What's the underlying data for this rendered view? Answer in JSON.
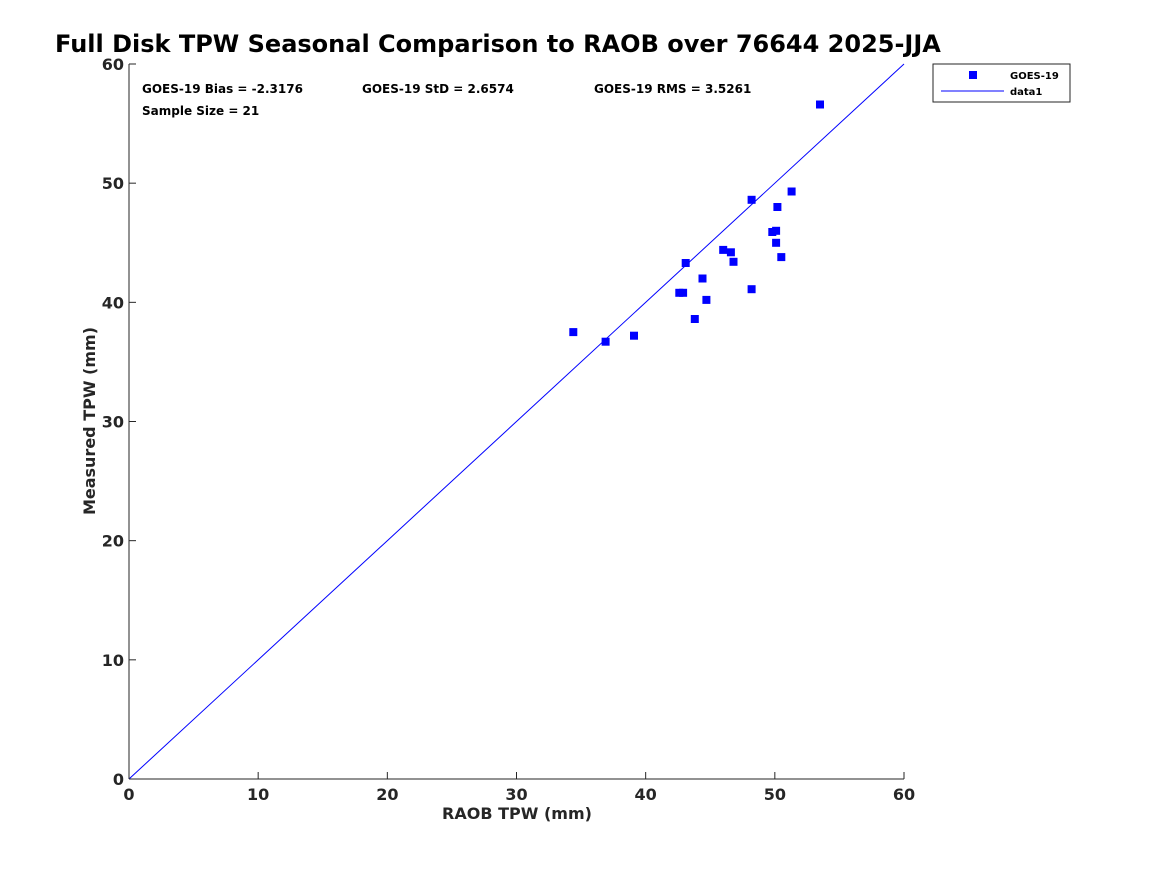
{
  "colors": {
    "marker": "#0000ff",
    "line": "#0000ff",
    "axis": "#262626",
    "background": "#ffffff"
  },
  "stats": {
    "bias": "GOES-19 Bias = -2.3176",
    "std": "GOES-19 StD = 2.6574",
    "rms": "GOES-19 RMS = 3.5261",
    "sample_size": "Sample Size = 21"
  },
  "chart_data": {
    "type": "scatter",
    "title": "Full Disk TPW Seasonal Comparison to RAOB over 76644 2025-JJA",
    "xlabel": "RAOB TPW (mm)",
    "ylabel": "Measured TPW (mm)",
    "xlim": [
      0,
      60
    ],
    "ylim": [
      0,
      60
    ],
    "xticks": [
      0,
      10,
      20,
      30,
      40,
      50,
      60
    ],
    "yticks": [
      0,
      10,
      20,
      30,
      40,
      50,
      60
    ],
    "xtick_labels": [
      "0",
      "10",
      "20",
      "30",
      "40",
      "50",
      "60"
    ],
    "ytick_labels": [
      "0",
      "10",
      "20",
      "30",
      "40",
      "50",
      "60"
    ],
    "grid": false,
    "legend_position": "top-right (outside plot)",
    "series": [
      {
        "name": "GOES-19",
        "kind": "scatter",
        "marker": "square",
        "x": [
          34.4,
          36.9,
          39.1,
          42.6,
          42.9,
          43.1,
          43.8,
          44.4,
          44.7,
          46.0,
          46.6,
          46.8,
          48.2,
          48.2,
          49.8,
          50.1,
          50.1,
          50.2,
          50.5,
          51.3,
          53.5
        ],
        "y": [
          37.5,
          36.7,
          37.2,
          40.8,
          40.8,
          43.3,
          38.6,
          42.0,
          40.2,
          44.4,
          44.2,
          43.4,
          48.6,
          41.1,
          45.9,
          46.0,
          45.0,
          48.0,
          43.8,
          49.3,
          56.6
        ]
      },
      {
        "name": "data1",
        "kind": "line",
        "x": [
          0,
          60
        ],
        "y": [
          0,
          60
        ]
      }
    ]
  }
}
